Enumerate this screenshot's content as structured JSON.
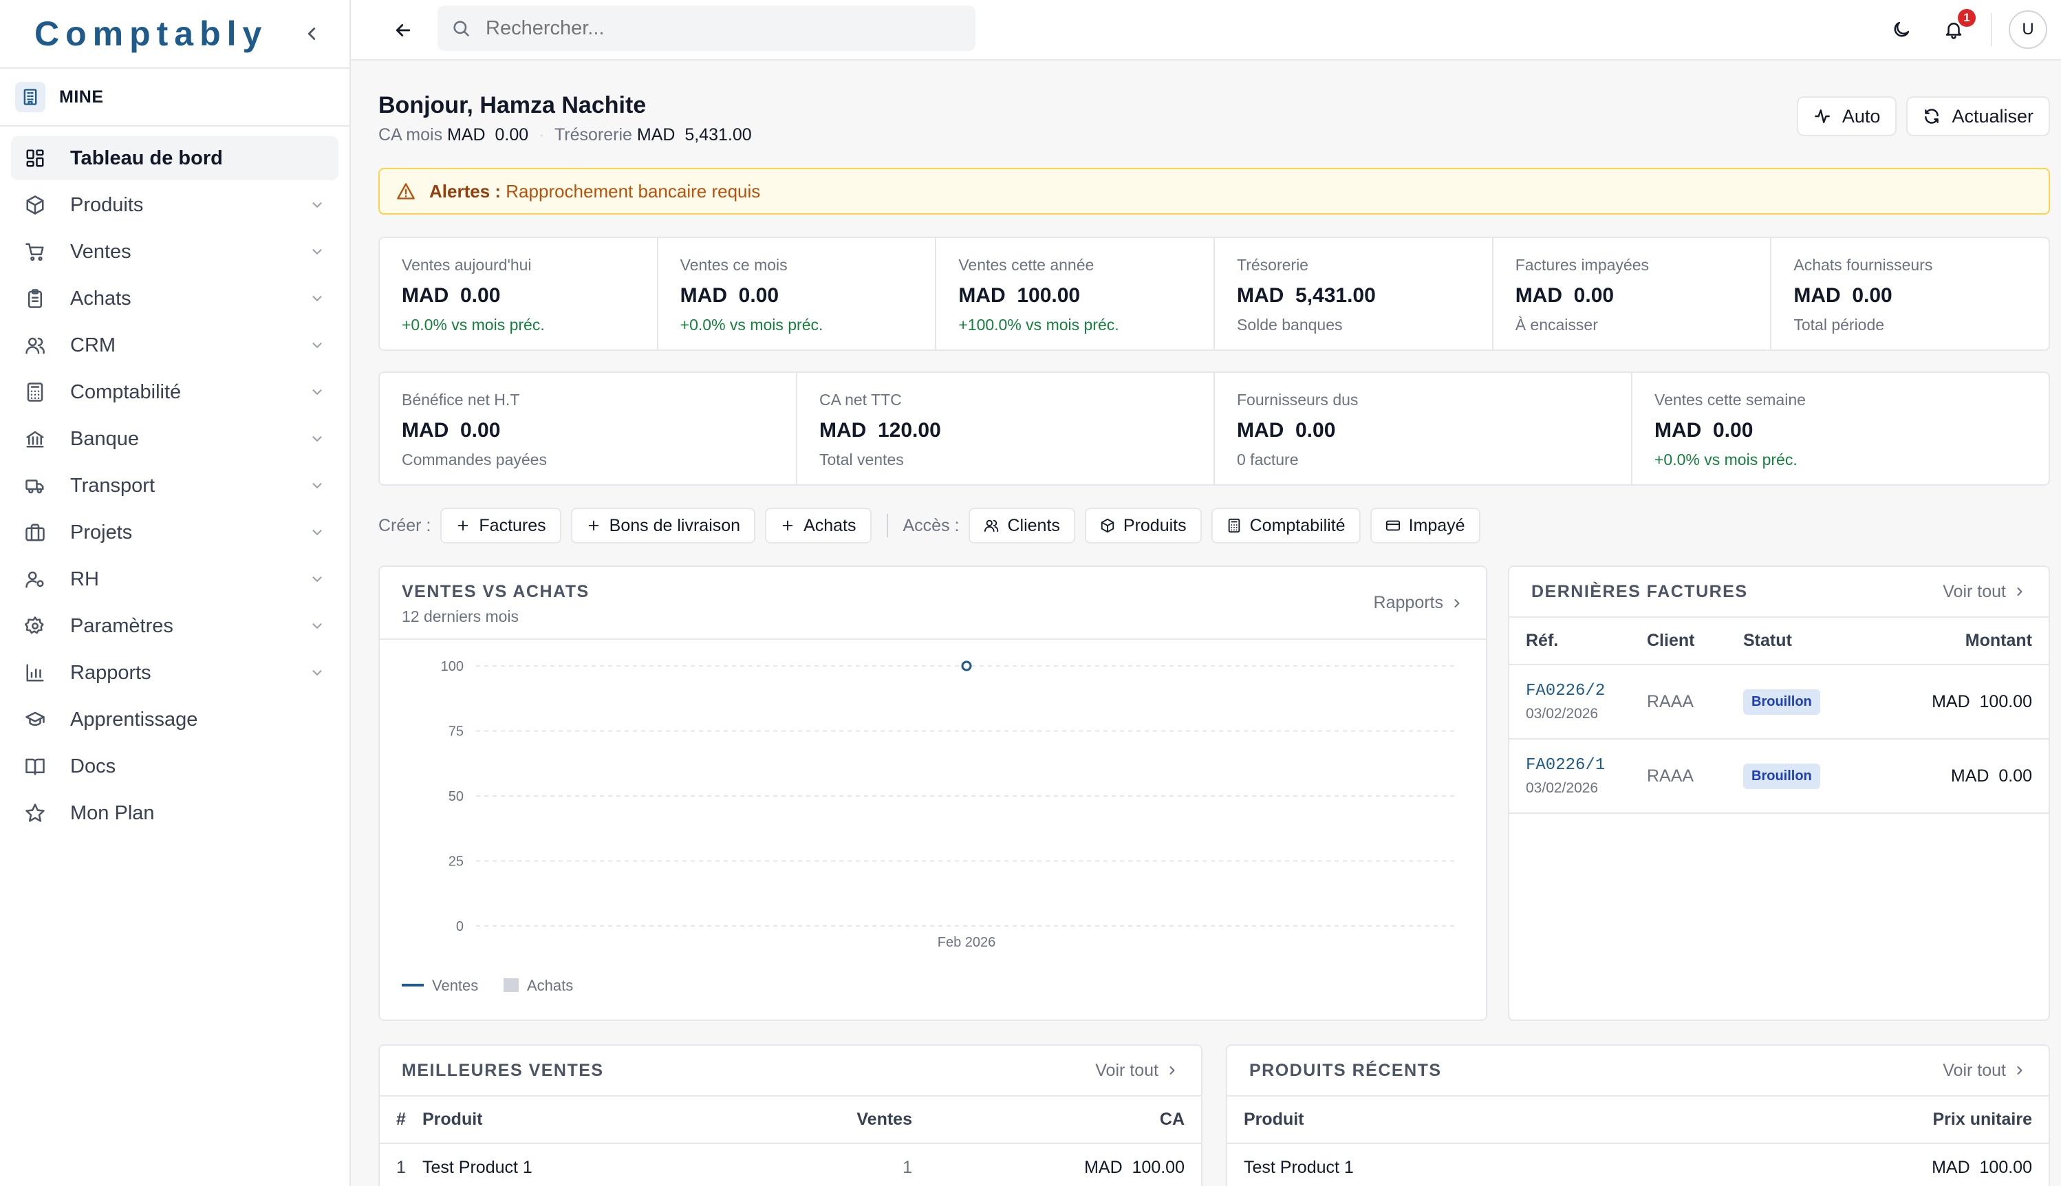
{
  "app": {
    "name": "Comptably"
  },
  "company": {
    "name": "MINE"
  },
  "sidebar": {
    "items": [
      {
        "label": "Tableau de bord",
        "icon": "dashboard-icon",
        "active": true,
        "expandable": false
      },
      {
        "label": "Produits",
        "icon": "box-icon",
        "expandable": true
      },
      {
        "label": "Ventes",
        "icon": "cart-icon",
        "expandable": true
      },
      {
        "label": "Achats",
        "icon": "clipboard-icon",
        "expandable": true
      },
      {
        "label": "CRM",
        "icon": "users-icon",
        "expandable": true
      },
      {
        "label": "Comptabilité",
        "icon": "calculator-icon",
        "expandable": true
      },
      {
        "label": "Banque",
        "icon": "bank-icon",
        "expandable": true
      },
      {
        "label": "Transport",
        "icon": "truck-icon",
        "expandable": true
      },
      {
        "label": "Projets",
        "icon": "briefcase-icon",
        "expandable": true
      },
      {
        "label": "RH",
        "icon": "user-cog-icon",
        "expandable": true
      },
      {
        "label": "Paramètres",
        "icon": "gear-icon",
        "expandable": true
      },
      {
        "label": "Rapports",
        "icon": "bar-chart-icon",
        "expandable": true
      },
      {
        "label": "Apprentissage",
        "icon": "graduation-cap-icon",
        "expandable": false
      },
      {
        "label": "Docs",
        "icon": "book-icon",
        "expandable": false
      },
      {
        "label": "Mon Plan",
        "icon": "star-icon",
        "expandable": false
      }
    ]
  },
  "topbar": {
    "search_placeholder": "Rechercher...",
    "notification_count": "1",
    "avatar_initial": "U"
  },
  "header": {
    "greeting": "Bonjour, Hamza Nachite",
    "ca_label": "CA mois",
    "ca_value": "MAD  0.00",
    "treso_label": "Trésorerie",
    "treso_value": "MAD  5,431.00",
    "auto_label": "Auto",
    "refresh_label": "Actualiser"
  },
  "alert": {
    "prefix": "Alertes :",
    "message": "Rapprochement bancaire requis"
  },
  "kpis_row1": [
    {
      "label": "Ventes aujourd'hui",
      "value": "MAD  0.00",
      "note": "+0.0% vs mois préc.",
      "positive": true
    },
    {
      "label": "Ventes ce mois",
      "value": "MAD  0.00",
      "note": "+0.0% vs mois préc.",
      "positive": true
    },
    {
      "label": "Ventes cette année",
      "value": "MAD  100.00",
      "note": "+100.0% vs mois préc.",
      "positive": true
    },
    {
      "label": "Trésorerie",
      "value": "MAD  5,431.00",
      "note": "Solde banques",
      "positive": false
    },
    {
      "label": "Factures impayées",
      "value": "MAD  0.00",
      "note": "À encaisser",
      "positive": false
    },
    {
      "label": "Achats fournisseurs",
      "value": "MAD  0.00",
      "note": "Total période",
      "positive": false
    }
  ],
  "kpis_row2": [
    {
      "label": "Bénéfice net H.T",
      "value": "MAD  0.00",
      "note": "Commandes payées",
      "positive": false
    },
    {
      "label": "CA net TTC",
      "value": "MAD  120.00",
      "note": "Total ventes",
      "positive": false
    },
    {
      "label": "Fournisseurs dus",
      "value": "MAD  0.00",
      "note": "0 facture",
      "positive": false
    },
    {
      "label": "Ventes cette semaine",
      "value": "MAD  0.00",
      "note": "+0.0% vs mois préc.",
      "positive": true
    }
  ],
  "quick": {
    "create_label": "Créer :",
    "create": [
      "Factures",
      "Bons de livraison",
      "Achats"
    ],
    "access_label": "Accès :",
    "access": [
      {
        "label": "Clients",
        "icon": "users-icon"
      },
      {
        "label": "Produits",
        "icon": "box-icon"
      },
      {
        "label": "Comptabilité",
        "icon": "calculator-icon"
      },
      {
        "label": "Impayé",
        "icon": "credit-card-icon"
      }
    ]
  },
  "sales_card": {
    "title": "VENTES VS ACHATS",
    "subtitle": "12 derniers mois",
    "link": "Rapports"
  },
  "chart_data": {
    "type": "line",
    "x": [
      "Feb 2026"
    ],
    "series": [
      {
        "name": "Ventes",
        "values": [
          100
        ],
        "color": "#1e5a8a"
      },
      {
        "name": "Achats",
        "values": [
          0
        ],
        "color": "#d1d5db"
      }
    ],
    "yticks": [
      100,
      75,
      50,
      25,
      0
    ],
    "ylim": [
      0,
      100
    ],
    "grid": true,
    "legend": "bottom-left"
  },
  "invoices": {
    "title": "DERNIÈRES FACTURES",
    "link": "Voir tout",
    "columns": [
      "Réf.",
      "Client",
      "Statut",
      "Montant"
    ],
    "rows": [
      {
        "ref": "FA0226/2",
        "date": "03/02/2026",
        "client": "RAAA",
        "status": "Brouillon",
        "amount": "MAD  100.00"
      },
      {
        "ref": "FA0226/1",
        "date": "03/02/2026",
        "client": "RAAA",
        "status": "Brouillon",
        "amount": "MAD  0.00"
      }
    ]
  },
  "best_sales": {
    "title": "MEILLEURES VENTES",
    "link": "Voir tout",
    "columns": [
      "#",
      "Produit",
      "Ventes",
      "CA"
    ],
    "rows": [
      {
        "rank": "1",
        "product": "Test Product 1",
        "sales": "1",
        "ca": "MAD  100.00"
      }
    ]
  },
  "recent_products": {
    "title": "PRODUITS RÉCENTS",
    "link": "Voir tout",
    "columns": [
      "Produit",
      "Prix unitaire"
    ],
    "rows": [
      {
        "product": "Test Product 1",
        "price": "MAD  100.00"
      }
    ]
  }
}
